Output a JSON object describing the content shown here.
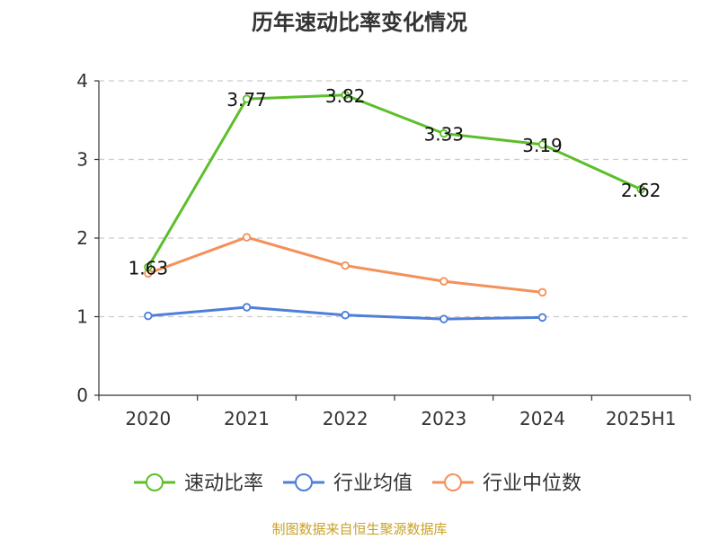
{
  "chart_data": {
    "type": "line",
    "title": "历年速动比率变化情况",
    "xlabel": "",
    "ylabel": "",
    "categories": [
      "2020",
      "2021",
      "2022",
      "2023",
      "2024",
      "2025H1"
    ],
    "ylim": [
      0,
      4
    ],
    "yticks": [
      0,
      1,
      2,
      3,
      4
    ],
    "grid": true,
    "legend_position": "bottom",
    "series": [
      {
        "name": "速动比率",
        "color": "#5cbf2a",
        "values": [
          1.63,
          3.77,
          3.82,
          3.33,
          3.19,
          2.62
        ],
        "labels": [
          "1.63",
          "3.77",
          "3.82",
          "3.33",
          "3.19",
          "2.62"
        ]
      },
      {
        "name": "行业均值",
        "color": "#4f7fd9",
        "values": [
          1.01,
          1.12,
          1.02,
          0.97,
          0.99,
          null
        ]
      },
      {
        "name": "行业中位数",
        "color": "#f4915a",
        "values": [
          1.55,
          2.01,
          1.65,
          1.45,
          1.31,
          null
        ]
      }
    ]
  },
  "source": "制图数据来自恒生聚源数据库",
  "colors": {
    "title": "#333333",
    "axis": "#333333",
    "grid": "#cccccc",
    "source": "#c9a227"
  }
}
